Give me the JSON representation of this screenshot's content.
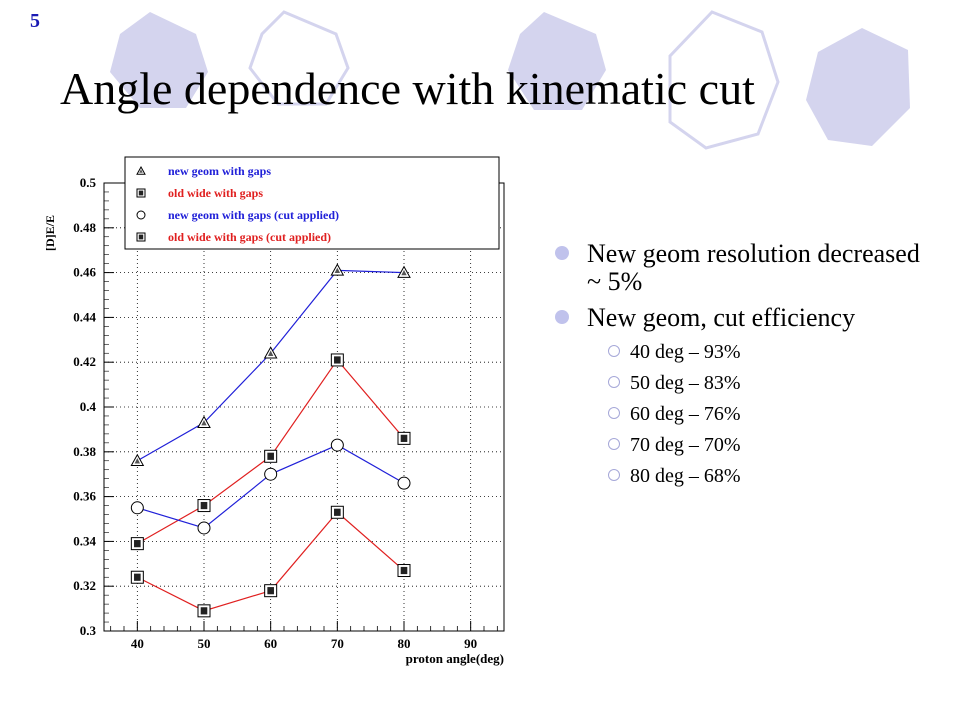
{
  "slide": {
    "number": "5",
    "title": "Angle dependence with kinematic cut"
  },
  "bullets": [
    {
      "text": "New geom resolution decreased ~ 5%",
      "sub": []
    },
    {
      "text": "New geom, cut efficiency",
      "sub": [
        "40 deg – 93%",
        "50 deg – 83%",
        "60 deg – 76%",
        "70 deg – 70%",
        "80 deg – 68%"
      ]
    }
  ],
  "colors": {
    "hexagon_fill": "#d4d4ee",
    "hexagon_stroke": "#d4d4ee",
    "bullet": "#c0c2ec",
    "blue_series": "#2020d8",
    "red_series": "#e02020",
    "slide_number": "#1a1ab4"
  },
  "chart_data": {
    "type": "line",
    "xlabel": "proton angle(deg)",
    "ylabel": "[D]E/E",
    "xlim": [
      35,
      95
    ],
    "ylim": [
      0.3,
      0.5
    ],
    "xticks": [
      40,
      50,
      60,
      70,
      80,
      90
    ],
    "yticks": [
      0.3,
      0.32,
      0.34,
      0.36,
      0.38,
      0.4,
      0.42,
      0.44,
      0.46,
      0.48,
      0.5
    ],
    "ytick_labels": [
      "0.3",
      "0.32",
      "0.34",
      "0.36",
      "0.38",
      "0.4",
      "0.42",
      "0.44",
      "0.46",
      "0.48",
      "0.5"
    ],
    "grid": true,
    "legend_position": "top",
    "x": [
      40,
      50,
      60,
      70,
      80
    ],
    "series": [
      {
        "name": "new geom with gaps",
        "marker": "triangle",
        "color": "#2020d8",
        "values": [
          0.376,
          0.393,
          0.424,
          0.461,
          0.46
        ]
      },
      {
        "name": "old wide with gaps",
        "marker": "square",
        "color": "#e02020",
        "values": [
          0.339,
          0.356,
          0.378,
          0.421,
          0.386
        ]
      },
      {
        "name": "new geom with gaps (cut applied)",
        "marker": "circle",
        "color": "#2020d8",
        "values": [
          0.355,
          0.346,
          0.37,
          0.383,
          0.366
        ]
      },
      {
        "name": "old wide with gaps (cut applied)",
        "marker": "square",
        "color": "#e02020",
        "values": [
          0.324,
          0.309,
          0.318,
          0.353,
          0.327
        ]
      }
    ]
  }
}
